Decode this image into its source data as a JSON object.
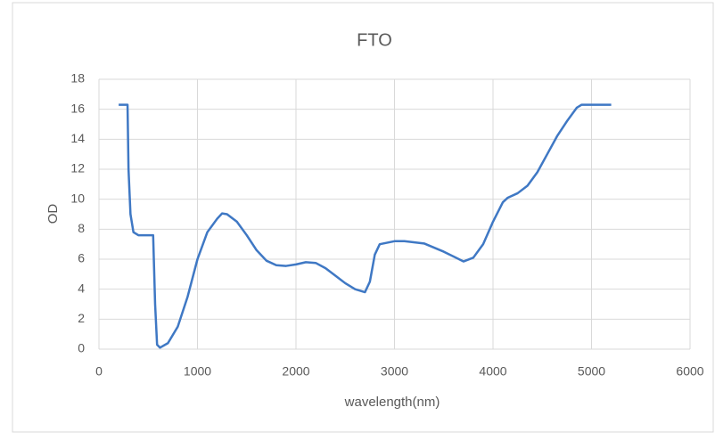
{
  "chart_data": {
    "type": "line",
    "title": "FTO",
    "x_label": "wavelength(nm)",
    "y_label": "OD",
    "x": [
      200,
      290,
      300,
      320,
      350,
      400,
      550,
      570,
      590,
      620,
      700,
      800,
      900,
      1000,
      1100,
      1200,
      1250,
      1300,
      1400,
      1500,
      1600,
      1700,
      1800,
      1900,
      2000,
      2100,
      2200,
      2300,
      2400,
      2500,
      2600,
      2700,
      2750,
      2800,
      2850,
      3000,
      3100,
      3300,
      3500,
      3700,
      3800,
      3900,
      4000,
      4100,
      4150,
      4250,
      4350,
      4450,
      4550,
      4650,
      4750,
      4850,
      4900,
      5000,
      5200
    ],
    "series": [
      {
        "name": "OD",
        "color": "#3f78c4",
        "values": [
          16.3,
          16.3,
          12,
          9,
          7.8,
          7.6,
          7.6,
          3,
          0.3,
          0.1,
          0.4,
          1.5,
          3.5,
          6,
          7.8,
          8.7,
          9.05,
          9,
          8.5,
          7.6,
          6.6,
          5.9,
          5.6,
          5.55,
          5.65,
          5.8,
          5.75,
          5.4,
          4.9,
          4.4,
          4.0,
          3.8,
          4.5,
          6.3,
          7.0,
          7.2,
          7.2,
          7.05,
          6.5,
          5.85,
          6.1,
          7.0,
          8.5,
          9.8,
          10.1,
          10.4,
          10.9,
          11.8,
          13.0,
          14.2,
          15.2,
          16.1,
          16.3,
          16.3,
          16.3
        ]
      }
    ],
    "xlim": [
      0,
      6000
    ],
    "xticks": [
      0,
      1000,
      2000,
      3000,
      4000,
      5000,
      6000
    ],
    "ylim": [
      0,
      18
    ],
    "yticks": [
      0,
      2,
      4,
      6,
      8,
      10,
      12,
      14,
      16,
      18
    ],
    "grid": true
  }
}
